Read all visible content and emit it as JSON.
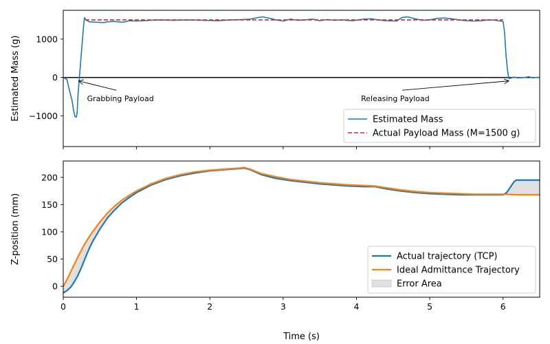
{
  "chart_data": [
    {
      "type": "line",
      "ylabel": "Estimated Mass (g)",
      "xlim": [
        0,
        6.5
      ],
      "ylim": [
        -1800,
        1750
      ],
      "xticks": [
        0,
        1,
        2,
        3,
        4,
        5,
        6
      ],
      "yticks": [
        -1000,
        0,
        1000
      ],
      "ytick_labels": [
        "−1000",
        "0",
        "1000"
      ],
      "zero_line": true,
      "legend_position": "lower-right",
      "series": [
        {
          "name": "Estimated Mass",
          "style": "solid",
          "color": "#1f77b4",
          "points": [
            [
              0,
              0
            ],
            [
              0.05,
              -50
            ],
            [
              0.08,
              -300
            ],
            [
              0.1,
              -450
            ],
            [
              0.12,
              -600
            ],
            [
              0.14,
              -850
            ],
            [
              0.16,
              -1020
            ],
            [
              0.18,
              -1030
            ],
            [
              0.19,
              -900
            ],
            [
              0.2,
              -500
            ],
            [
              0.22,
              0
            ],
            [
              0.25,
              700
            ],
            [
              0.28,
              1400
            ],
            [
              0.29,
              1560
            ],
            [
              0.3,
              1520
            ],
            [
              0.35,
              1450
            ],
            [
              0.45,
              1440
            ],
            [
              0.55,
              1430
            ],
            [
              0.6,
              1450
            ],
            [
              0.7,
              1460
            ],
            [
              0.8,
              1440
            ],
            [
              0.85,
              1450
            ],
            [
              0.9,
              1480
            ],
            [
              1.0,
              1470
            ],
            [
              1.1,
              1480
            ],
            [
              1.2,
              1490
            ],
            [
              1.3,
              1500
            ],
            [
              1.5,
              1490
            ],
            [
              1.7,
              1500
            ],
            [
              1.9,
              1490
            ],
            [
              2.1,
              1480
            ],
            [
              2.3,
              1500
            ],
            [
              2.45,
              1510
            ],
            [
              2.55,
              1520
            ],
            [
              2.65,
              1560
            ],
            [
              2.72,
              1580
            ],
            [
              2.8,
              1550
            ],
            [
              2.9,
              1500
            ],
            [
              3.0,
              1470
            ],
            [
              3.1,
              1520
            ],
            [
              3.2,
              1490
            ],
            [
              3.3,
              1500
            ],
            [
              3.4,
              1520
            ],
            [
              3.5,
              1480
            ],
            [
              3.6,
              1510
            ],
            [
              3.7,
              1490
            ],
            [
              3.8,
              1500
            ],
            [
              3.95,
              1480
            ],
            [
              4.1,
              1520
            ],
            [
              4.2,
              1530
            ],
            [
              4.3,
              1500
            ],
            [
              4.4,
              1480
            ],
            [
              4.55,
              1470
            ],
            [
              4.62,
              1560
            ],
            [
              4.7,
              1580
            ],
            [
              4.8,
              1530
            ],
            [
              4.9,
              1490
            ],
            [
              5.0,
              1500
            ],
            [
              5.1,
              1540
            ],
            [
              5.2,
              1550
            ],
            [
              5.3,
              1530
            ],
            [
              5.4,
              1500
            ],
            [
              5.5,
              1480
            ],
            [
              5.6,
              1470
            ],
            [
              5.7,
              1480
            ],
            [
              5.8,
              1500
            ],
            [
              5.9,
              1490
            ],
            [
              5.96,
              1470
            ],
            [
              6.0,
              1460
            ],
            [
              6.02,
              1200
            ],
            [
              6.04,
              600
            ],
            [
              6.06,
              200
            ],
            [
              6.08,
              -30
            ],
            [
              6.1,
              -20
            ],
            [
              6.15,
              10
            ],
            [
              6.2,
              -10
            ],
            [
              6.3,
              0
            ],
            [
              6.35,
              20
            ],
            [
              6.4,
              -10
            ],
            [
              6.45,
              0
            ],
            [
              6.5,
              0
            ]
          ]
        },
        {
          "name": "Actual Payload Mass (M=1500 g)",
          "style": "dashed",
          "color": "#d62728",
          "points": [
            [
              0.3,
              1500
            ],
            [
              6.0,
              1500
            ]
          ]
        }
      ],
      "annotations": [
        {
          "text": "Grabbing Payload",
          "text_at": [
            0.78,
            -620
          ],
          "arrow_to": [
            0.21,
            -90
          ]
        },
        {
          "text": "Releasing Payload",
          "text_at": [
            4.53,
            -620
          ],
          "arrow_to": [
            6.08,
            -90
          ]
        }
      ]
    },
    {
      "type": "line",
      "xlabel": "Time (s)",
      "ylabel": "Z-position (mm)",
      "xlim": [
        0,
        6.5
      ],
      "ylim": [
        -20,
        230
      ],
      "xticks": [
        0,
        1,
        2,
        3,
        4,
        5,
        6
      ],
      "yticks": [
        0,
        50,
        100,
        150,
        200
      ],
      "legend_position": "lower-right",
      "series": [
        {
          "name": "Actual trajectory (TCP)",
          "color": "#1f77b4",
          "points": [
            [
              0,
              -12
            ],
            [
              0.05,
              -8
            ],
            [
              0.1,
              -2
            ],
            [
              0.15,
              8
            ],
            [
              0.2,
              20
            ],
            [
              0.25,
              35
            ],
            [
              0.3,
              52
            ],
            [
              0.35,
              68
            ],
            [
              0.4,
              82
            ],
            [
              0.5,
              105
            ],
            [
              0.6,
              125
            ],
            [
              0.7,
              140
            ],
            [
              0.8,
              153
            ],
            [
              0.9,
              163
            ],
            [
              1.0,
              172
            ],
            [
              1.2,
              186
            ],
            [
              1.4,
              196
            ],
            [
              1.6,
              203
            ],
            [
              1.8,
              208
            ],
            [
              2.0,
              212
            ],
            [
              2.2,
              214
            ],
            [
              2.4,
              216
            ],
            [
              2.47,
              217
            ],
            [
              2.55,
              214
            ],
            [
              2.7,
              205
            ],
            [
              2.9,
              198
            ],
            [
              3.1,
              194
            ],
            [
              3.3,
              191
            ],
            [
              3.5,
              188
            ],
            [
              3.7,
              186
            ],
            [
              3.9,
              184
            ],
            [
              4.1,
              183
            ],
            [
              4.25,
              183
            ],
            [
              4.4,
              179
            ],
            [
              4.6,
              175
            ],
            [
              4.8,
              172
            ],
            [
              5.0,
              170
            ],
            [
              5.2,
              169
            ],
            [
              5.4,
              168
            ],
            [
              5.6,
              168
            ],
            [
              5.8,
              168
            ],
            [
              6.0,
              168
            ],
            [
              6.05,
              172
            ],
            [
              6.1,
              182
            ],
            [
              6.15,
              192
            ],
            [
              6.18,
              195
            ],
            [
              6.3,
              195
            ],
            [
              6.5,
              195
            ]
          ]
        },
        {
          "name": "Ideal Admittance Trajectory",
          "color": "#ff7f0e",
          "points": [
            [
              0,
              0
            ],
            [
              0.05,
              12
            ],
            [
              0.1,
              26
            ],
            [
              0.15,
              40
            ],
            [
              0.2,
              54
            ],
            [
              0.25,
              67
            ],
            [
              0.3,
              79
            ],
            [
              0.35,
              90
            ],
            [
              0.4,
              100
            ],
            [
              0.5,
              118
            ],
            [
              0.6,
              134
            ],
            [
              0.7,
              147
            ],
            [
              0.8,
              158
            ],
            [
              0.9,
              167
            ],
            [
              1.0,
              175
            ],
            [
              1.2,
              188
            ],
            [
              1.4,
              198
            ],
            [
              1.6,
              205
            ],
            [
              1.8,
              210
            ],
            [
              2.0,
              213
            ],
            [
              2.2,
              215
            ],
            [
              2.4,
              217
            ],
            [
              2.47,
              218
            ],
            [
              2.55,
              215
            ],
            [
              2.7,
              207
            ],
            [
              2.9,
              201
            ],
            [
              3.1,
              196
            ],
            [
              3.3,
              193
            ],
            [
              3.5,
              190
            ],
            [
              3.7,
              188
            ],
            [
              3.9,
              186
            ],
            [
              4.1,
              185
            ],
            [
              4.25,
              184
            ],
            [
              4.4,
              181
            ],
            [
              4.6,
              177
            ],
            [
              4.8,
              174
            ],
            [
              5.0,
              172
            ],
            [
              5.2,
              171
            ],
            [
              5.4,
              170
            ],
            [
              5.6,
              169
            ],
            [
              5.8,
              169
            ],
            [
              6.0,
              169
            ],
            [
              6.2,
              168
            ],
            [
              6.5,
              168
            ]
          ]
        }
      ],
      "fill": {
        "name": "Error Area",
        "color": "#e0e0e0",
        "between": [
          "Actual trajectory (TCP)",
          "Ideal Admittance Trajectory"
        ]
      }
    }
  ]
}
